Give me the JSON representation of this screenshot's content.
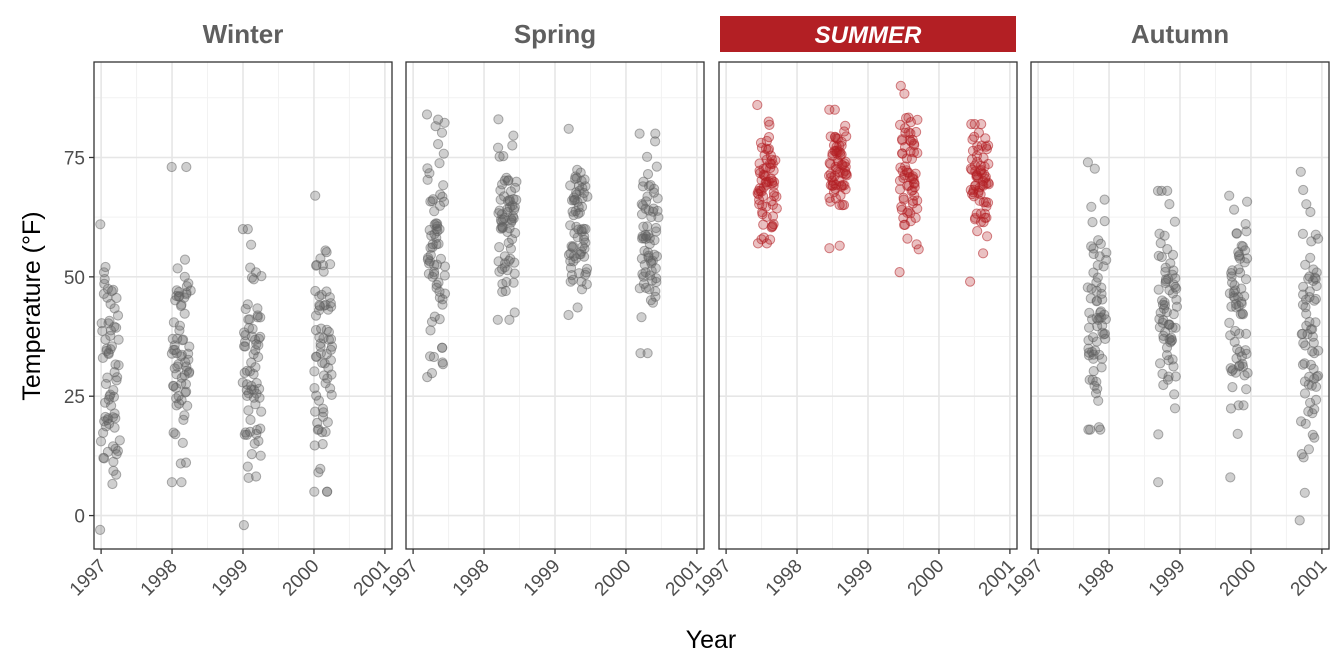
{
  "chart_data": {
    "type": "scatter",
    "title": "",
    "xlabel": "Year",
    "ylabel": "Temperature (°F)",
    "ylim": [
      -7,
      95
    ],
    "xlim": [
      1996.9,
      2001.1
    ],
    "y_ticks": [
      0,
      25,
      50,
      75
    ],
    "x_ticks": [
      "1997",
      "1998",
      "1999",
      "2000",
      "2001"
    ],
    "grid": true,
    "highlight_color": "#B31F24",
    "point_color": "#606060",
    "facets": [
      {
        "label": "Winter",
        "highlighted": false,
        "clusters": [
          {
            "year": 1997,
            "x_start": 1997.0,
            "x_end": 1997.25,
            "y_min": -3,
            "y_max": 61,
            "y_center": 30,
            "n": 70
          },
          {
            "year": 1998,
            "x_start": 1998.0,
            "x_end": 1998.25,
            "y_min": 7,
            "y_max": 73,
            "y_center": 35,
            "n": 70
          },
          {
            "year": 1999,
            "x_start": 1999.0,
            "x_end": 1999.25,
            "y_min": -2,
            "y_max": 60,
            "y_center": 32,
            "n": 70
          },
          {
            "year": 2000,
            "x_start": 2000.0,
            "x_end": 2000.25,
            "y_min": 5,
            "y_max": 67,
            "y_center": 35,
            "n": 70
          }
        ]
      },
      {
        "label": "Spring",
        "highlighted": false,
        "clusters": [
          {
            "year": 1997,
            "x_start": 1997.2,
            "x_end": 1997.45,
            "y_min": 29,
            "y_max": 84,
            "y_center": 56,
            "n": 70
          },
          {
            "year": 1998,
            "x_start": 1998.2,
            "x_end": 1998.45,
            "y_min": 41,
            "y_max": 83,
            "y_center": 62,
            "n": 70
          },
          {
            "year": 1999,
            "x_start": 1999.2,
            "x_end": 1999.45,
            "y_min": 42,
            "y_max": 81,
            "y_center": 60,
            "n": 70
          },
          {
            "year": 2000,
            "x_start": 2000.2,
            "x_end": 2000.45,
            "y_min": 34,
            "y_max": 80,
            "y_center": 58,
            "n": 70
          }
        ]
      },
      {
        "label": "Summer",
        "highlighted": true,
        "clusters": [
          {
            "year": 1997,
            "x_start": 1997.45,
            "x_end": 1997.7,
            "y_min": 57,
            "y_max": 86,
            "y_center": 70,
            "n": 70
          },
          {
            "year": 1998,
            "x_start": 1998.45,
            "x_end": 1998.7,
            "y_min": 56,
            "y_max": 85,
            "y_center": 73,
            "n": 70
          },
          {
            "year": 1999,
            "x_start": 1999.45,
            "x_end": 1999.7,
            "y_min": 51,
            "y_max": 90,
            "y_center": 72,
            "n": 70
          },
          {
            "year": 2000,
            "x_start": 2000.45,
            "x_end": 2000.7,
            "y_min": 49,
            "y_max": 82,
            "y_center": 70,
            "n": 70
          }
        ]
      },
      {
        "label": "Autumn",
        "highlighted": false,
        "clusters": [
          {
            "year": 1997,
            "x_start": 1997.7,
            "x_end": 1997.95,
            "y_min": 18,
            "y_max": 74,
            "y_center": 40,
            "n": 70
          },
          {
            "year": 1998,
            "x_start": 1998.7,
            "x_end": 1998.95,
            "y_min": 7,
            "y_max": 68,
            "y_center": 42,
            "n": 70
          },
          {
            "year": 1999,
            "x_start": 1999.7,
            "x_end": 1999.95,
            "y_min": 8,
            "y_max": 67,
            "y_center": 42,
            "n": 70
          },
          {
            "year": 2000,
            "x_start": 2000.7,
            "x_end": 2000.95,
            "y_min": -1,
            "y_max": 72,
            "y_center": 35,
            "n": 70
          }
        ]
      }
    ]
  }
}
